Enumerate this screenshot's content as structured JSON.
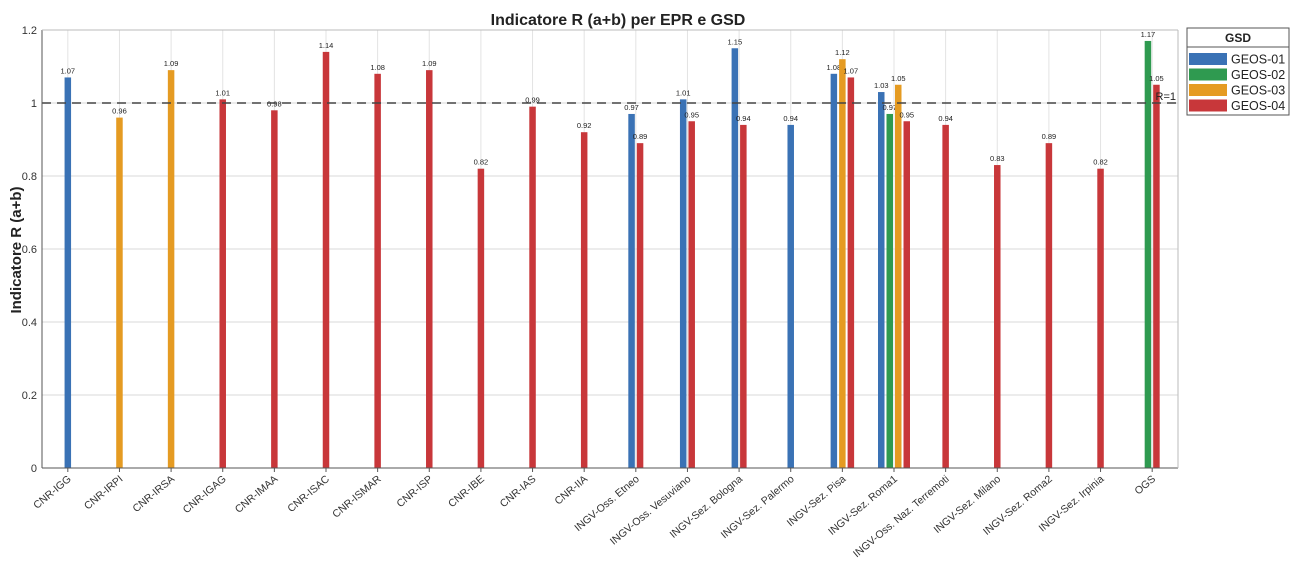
{
  "chart_data": {
    "type": "bar",
    "title": "Indicatore R (a+b) per EPR e GSD",
    "xlabel": "",
    "ylabel": "Indicatore R (a+b)",
    "ylim": [
      0,
      1.2
    ],
    "yticks": [
      "0",
      "0.2",
      "0.4",
      "0.6",
      "0.8",
      "1",
      "1.2"
    ],
    "ytick_values": [
      0,
      0.2,
      0.4,
      0.6,
      0.8,
      1.0,
      1.2
    ],
    "grid": true,
    "legend_title": "GSD",
    "legend_position": "top-right",
    "reference_line": {
      "value": 1.0,
      "label": "R=1"
    },
    "categories": [
      "CNR-IGG",
      "CNR-IRPI",
      "CNR-IRSA",
      "CNR-IGAG",
      "CNR-IMAA",
      "CNR-ISAC",
      "CNR-ISMAR",
      "CNR-ISP",
      "CNR-IBE",
      "CNR-IAS",
      "CNR-IIA",
      "INGV-Oss. Etneo",
      "INGV-Oss. Vesuviano",
      "INGV-Sez. Bologna",
      "INGV-Sez. Palermo",
      "INGV-Sez. Pisa",
      "INGV-Sez. Roma1",
      "INGV-Oss. Naz. Terremoti",
      "INGV-Sez. Milano",
      "INGV-Sez. Roma2",
      "INGV-Sez. Irpinia",
      "OGS"
    ],
    "series": [
      {
        "name": "GEOS-01",
        "color": "#3a72b5",
        "values": [
          1.07,
          null,
          null,
          null,
          null,
          null,
          null,
          null,
          null,
          null,
          null,
          0.97,
          1.01,
          1.15,
          0.94,
          1.08,
          1.03,
          null,
          null,
          null,
          null,
          null
        ],
        "labels": [
          "1.07",
          null,
          null,
          null,
          null,
          null,
          null,
          null,
          null,
          null,
          null,
          "0.97",
          "1.01",
          "1.15",
          "0.94",
          "1.08",
          "1.03",
          null,
          null,
          null,
          null,
          null
        ]
      },
      {
        "name": "GEOS-02",
        "color": "#2f9a50",
        "values": [
          null,
          null,
          null,
          null,
          null,
          null,
          null,
          null,
          null,
          null,
          null,
          null,
          null,
          null,
          null,
          null,
          0.97,
          null,
          null,
          null,
          null,
          1.17
        ],
        "labels": [
          null,
          null,
          null,
          null,
          null,
          null,
          null,
          null,
          null,
          null,
          null,
          null,
          null,
          null,
          null,
          null,
          "0.97",
          null,
          null,
          null,
          null,
          "1.17"
        ]
      },
      {
        "name": "GEOS-03",
        "color": "#e59b22",
        "values": [
          null,
          0.96,
          1.09,
          null,
          null,
          null,
          null,
          null,
          null,
          null,
          null,
          null,
          null,
          null,
          null,
          1.12,
          1.05,
          null,
          null,
          null,
          null,
          null
        ],
        "labels": [
          null,
          "0.96",
          "1.09",
          null,
          null,
          null,
          null,
          null,
          null,
          null,
          null,
          null,
          null,
          null,
          null,
          "1.12",
          "1.05",
          null,
          null,
          null,
          null,
          null
        ]
      },
      {
        "name": "GEOS-04",
        "color": "#c8373a",
        "values": [
          null,
          null,
          null,
          1.01,
          0.98,
          1.14,
          1.08,
          1.09,
          0.82,
          0.99,
          0.92,
          0.89,
          0.95,
          0.94,
          null,
          1.07,
          0.95,
          0.94,
          0.83,
          0.89,
          0.82,
          1.05
        ],
        "labels": [
          null,
          null,
          null,
          "1.01",
          "0.98",
          "1.14",
          "1.08",
          "1.09",
          "0.82",
          "0.99",
          "0.92",
          "0.89",
          "0.95",
          "0.94",
          null,
          "1.07",
          "0.95",
          "0.94",
          "0.83",
          "0.89",
          "0.82",
          "1.05"
        ]
      }
    ]
  }
}
